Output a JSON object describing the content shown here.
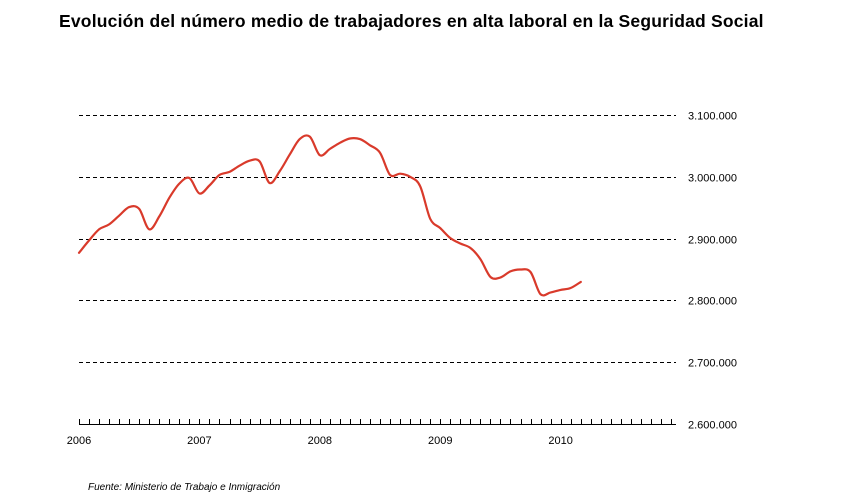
{
  "chart_data": {
    "type": "line",
    "title": "Evolución del número medio de trabajadores en alta laboral en la Seguridad Social",
    "source": "Fuente: Ministerio de Trabajo e Inmigración",
    "xlabel": "",
    "ylabel": "",
    "x_ticks": [
      "2006",
      "2007",
      "2008",
      "2009",
      "2010"
    ],
    "y_ticks": [
      "2.600.000",
      "2.700.000",
      "2.800.000",
      "2.900.000",
      "3.000.000",
      "3.100.000"
    ],
    "ylim": [
      2600000,
      3100000
    ],
    "xlim": [
      2006.0,
      2010.958
    ],
    "grid": "horizontal dashed",
    "colors": {
      "series": "#d93a2b",
      "grid": "#000000"
    },
    "series": [
      {
        "values": [
          [
            2006.0,
            2877000
          ],
          [
            2006.083,
            2897000
          ],
          [
            2006.167,
            2915000
          ],
          [
            2006.25,
            2923000
          ],
          [
            2006.333,
            2937000
          ],
          [
            2006.417,
            2951000
          ],
          [
            2006.5,
            2948000
          ],
          [
            2006.583,
            2915000
          ],
          [
            2006.667,
            2936000
          ],
          [
            2006.75,
            2966000
          ],
          [
            2006.833,
            2989000
          ],
          [
            2006.917,
            2998000
          ],
          [
            2007.0,
            2973000
          ],
          [
            2007.083,
            2986000
          ],
          [
            2007.167,
            3003000
          ],
          [
            2007.25,
            3008000
          ],
          [
            2007.333,
            3018000
          ],
          [
            2007.417,
            3026000
          ],
          [
            2007.5,
            3025000
          ],
          [
            2007.583,
            2990000
          ],
          [
            2007.667,
            3009000
          ],
          [
            2007.75,
            3036000
          ],
          [
            2007.833,
            3061000
          ],
          [
            2007.917,
            3065000
          ],
          [
            2008.0,
            3035000
          ],
          [
            2008.083,
            3045000
          ],
          [
            2008.167,
            3055000
          ],
          [
            2008.25,
            3062000
          ],
          [
            2008.333,
            3061000
          ],
          [
            2008.417,
            3051000
          ],
          [
            2008.5,
            3039000
          ],
          [
            2008.583,
            3003000
          ],
          [
            2008.667,
            3005000
          ],
          [
            2008.75,
            3000000
          ],
          [
            2008.833,
            2985000
          ],
          [
            2008.917,
            2932000
          ],
          [
            2009.0,
            2917000
          ],
          [
            2009.083,
            2901000
          ],
          [
            2009.167,
            2892000
          ],
          [
            2009.25,
            2885000
          ],
          [
            2009.333,
            2867000
          ],
          [
            2009.417,
            2838000
          ],
          [
            2009.5,
            2837000
          ],
          [
            2009.583,
            2847000
          ],
          [
            2009.667,
            2850000
          ],
          [
            2009.75,
            2846000
          ],
          [
            2009.833,
            2810000
          ],
          [
            2009.917,
            2813000
          ],
          [
            2010.0,
            2817000
          ],
          [
            2010.083,
            2820000
          ],
          [
            2010.167,
            2830000
          ]
        ]
      }
    ]
  }
}
